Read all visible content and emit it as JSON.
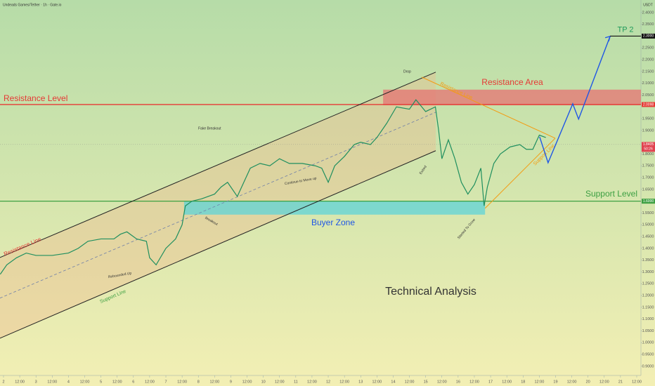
{
  "chart_data": {
    "type": "line",
    "title": "Undeads Games/Tether · 1h · Gate.io",
    "y_axis_label": "USDT",
    "color": "#1f8f5f",
    "x": [
      1.9,
      2.1,
      2.4,
      2.7,
      3.0,
      3.5,
      4.0,
      4.3,
      4.6,
      5.0,
      5.4,
      5.6,
      5.8,
      6.1,
      6.4,
      6.5,
      6.7,
      7.0,
      7.3,
      7.5,
      7.6,
      7.8,
      8.1,
      8.5,
      8.7,
      8.9,
      9.2,
      9.4,
      9.6,
      9.9,
      10.2,
      10.5,
      10.8,
      11.2,
      11.6,
      11.8,
      12.0,
      12.2,
      12.5,
      12.8,
      13.0,
      13.3,
      13.5,
      13.8,
      14.1,
      14.5,
      14.7,
      15.0,
      15.3,
      15.4,
      15.5,
      15.7,
      15.9,
      16.1,
      16.3,
      16.5,
      16.7,
      16.8,
      16.9,
      17.1,
      17.3,
      17.6,
      17.9,
      18.1,
      18.3,
      18.5,
      18.7
    ],
    "values": [
      1.29,
      1.33,
      1.36,
      1.38,
      1.37,
      1.37,
      1.38,
      1.4,
      1.43,
      1.44,
      1.44,
      1.46,
      1.47,
      1.44,
      1.43,
      1.36,
      1.33,
      1.4,
      1.44,
      1.5,
      1.58,
      1.6,
      1.61,
      1.63,
      1.66,
      1.68,
      1.62,
      1.68,
      1.74,
      1.76,
      1.75,
      1.78,
      1.76,
      1.76,
      1.75,
      1.74,
      1.68,
      1.75,
      1.79,
      1.84,
      1.85,
      1.84,
      1.87,
      1.93,
      2.0,
      1.99,
      2.03,
      1.98,
      2.0,
      1.9,
      1.78,
      1.86,
      1.78,
      1.68,
      1.63,
      1.67,
      1.74,
      1.58,
      1.66,
      1.76,
      1.8,
      1.83,
      1.84,
      1.82,
      1.82,
      1.88,
      1.87
    ],
    "xlim": [
      1.892,
      21.63
    ],
    "ylim": [
      0.861,
      2.453
    ],
    "xticks": [
      2,
      {
        "value": 2.5,
        "label": "12:00"
      },
      3,
      {
        "value": 3.5,
        "label": "12:00"
      },
      4,
      {
        "value": 4.5,
        "label": "12:00"
      },
      5,
      {
        "value": 5.5,
        "label": "12:00"
      },
      6,
      {
        "value": 6.5,
        "label": "12:00"
      },
      7,
      {
        "value": 7.5,
        "label": "12:00"
      },
      8,
      {
        "value": 8.5,
        "label": "12:00"
      },
      9,
      {
        "value": 9.5,
        "label": "12:00"
      },
      10,
      {
        "value": 10.5,
        "label": "12:00"
      },
      11,
      {
        "value": 11.5,
        "label": "12:00"
      },
      12,
      {
        "value": 12.5,
        "label": "12:00"
      },
      13,
      {
        "value": 13.5,
        "label": "12:00"
      },
      14,
      {
        "value": 14.5,
        "label": "12:00"
      },
      15,
      {
        "value": 15.5,
        "label": "12:00"
      },
      16,
      {
        "value": 16.5,
        "label": "12:00"
      },
      17,
      {
        "value": 17.5,
        "label": "12:00"
      },
      18,
      {
        "value": 18.5,
        "label": "12:00"
      },
      19,
      {
        "value": 19.5,
        "label": "12:00"
      },
      20,
      {
        "value": 20.5,
        "label": "12:00"
      },
      21,
      {
        "value": 21.5,
        "label": "12:00"
      }
    ],
    "yticks": [
      {
        "value": 0.9,
        "label": "0.9000"
      },
      {
        "value": 0.95,
        "label": "0.9500"
      },
      {
        "value": 1.0,
        "label": "1.0000"
      },
      {
        "value": 1.05,
        "label": "1.0500"
      },
      {
        "value": 1.1,
        "label": "1.1000"
      },
      {
        "value": 1.15,
        "label": "1.1500"
      },
      {
        "value": 1.2,
        "label": "1.2000"
      },
      {
        "value": 1.25,
        "label": "1.2500"
      },
      {
        "value": 1.3,
        "label": "1.3000"
      },
      {
        "value": 1.35,
        "label": "1.3500"
      },
      {
        "value": 1.4,
        "label": "1.4000"
      },
      {
        "value": 1.45,
        "label": "1.4500"
      },
      {
        "value": 1.5,
        "label": "1.5000"
      },
      {
        "value": 1.55,
        "label": "1.5500"
      },
      {
        "value": 1.65,
        "label": "1.6500"
      },
      {
        "value": 1.7,
        "label": "1.7000"
      },
      {
        "value": 1.75,
        "label": "1.7500"
      },
      {
        "value": 1.8,
        "label": "1.8000"
      },
      {
        "value": 1.9,
        "label": "1.9000"
      },
      {
        "value": 1.95,
        "label": "1.9500"
      },
      {
        "value": 2.05,
        "label": "2.0500"
      },
      {
        "value": 2.1,
        "label": "2.1000"
      },
      {
        "value": 2.15,
        "label": "2.1500"
      },
      {
        "value": 2.2,
        "label": "2.2000"
      },
      {
        "value": 2.25,
        "label": "2.2500"
      },
      {
        "value": 2.35,
        "label": "2.3500"
      },
      {
        "value": 2.4,
        "label": "2.4000"
      }
    ],
    "grid": false,
    "levels": [
      {
        "label": "Resistance Level",
        "value": 2.0098,
        "color": "#e53935"
      },
      {
        "label": "Support Level",
        "value": 1.6,
        "color": "#3ea043"
      }
    ],
    "zones": [
      {
        "label": "Resistance Area",
        "x": [
          13.69,
          21.63
        ],
        "y": [
          2.007,
          2.073
        ],
        "color": "#e57373"
      },
      {
        "label": "Buyer Zone",
        "x": [
          7.56,
          16.83
        ],
        "y": [
          1.543,
          1.6
        ],
        "color": "#5fd3d8"
      }
    ],
    "trendlines": [
      {
        "label": "Resistance Line",
        "x": [
          1.89,
          15.31
        ],
        "y": [
          1.361,
          2.147
        ],
        "color": "#222222"
      },
      {
        "label": "Support Line",
        "x": [
          1.89,
          15.31
        ],
        "y": [
          1.019,
          1.814
        ],
        "color": "#222222"
      },
      {
        "x": [
          1.89,
          15.31
        ],
        "y": [
          1.189,
          1.977
        ],
        "color": "#6f7fa8"
      },
      {
        "label": "Resistance Line",
        "x": [
          14.88,
          18.99
        ],
        "y": [
          2.126,
          1.867
        ],
        "color": "#f39c12"
      },
      {
        "label": "Support Line",
        "x": [
          16.83,
          18.99
        ],
        "y": [
          1.57,
          1.867
        ],
        "color": "#f39c12"
      }
    ],
    "forecast": {
      "x": [
        18.51,
        18.77,
        19.53,
        19.71,
        20.68
      ],
      "y": [
        1.873,
        1.763,
        2.013,
        1.948,
        2.299
      ],
      "color": "#1e56e6"
    },
    "target": {
      "label": "TP 2",
      "value": 2.3,
      "x": [
        20.68,
        21.63
      ],
      "color": "#111111"
    },
    "price_labels": [
      {
        "value": 2.3,
        "label": "2.3000",
        "color": "#111111"
      },
      {
        "value": 2.0098,
        "label": "2.0098",
        "color": "#e53935"
      },
      {
        "value": 1.8405,
        "label": "1.8405",
        "countdown": "50:26",
        "color": "#e0424f"
      },
      {
        "value": 1.6,
        "label": "1.6000",
        "color": "#3ea043"
      }
    ],
    "annotations": [
      "Drop",
      "Fake Breakout",
      "Continue to Move up",
      "Breakout",
      "Rebounded Up",
      "Exited",
      "Started To Grow",
      "Technical Analysis"
    ]
  }
}
